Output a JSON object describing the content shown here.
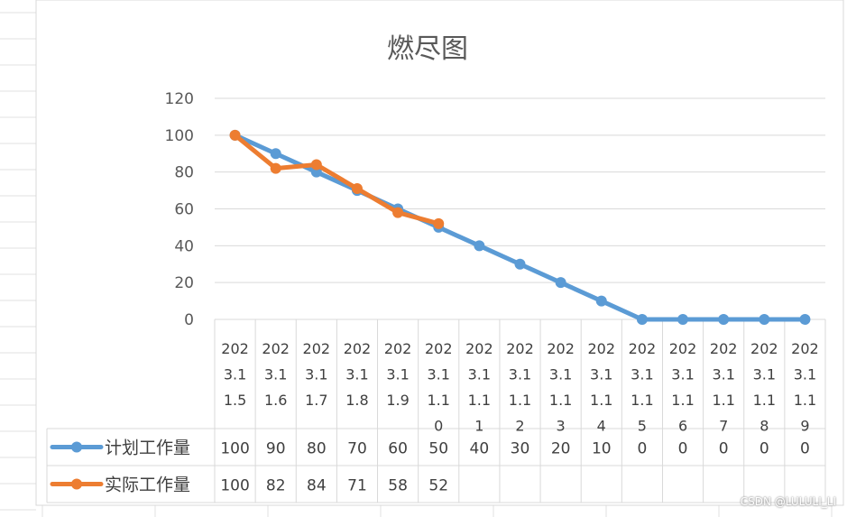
{
  "chart_data": {
    "type": "line",
    "title": "燃尽图",
    "ylim": [
      0,
      120
    ],
    "yticks": [
      "0",
      "20",
      "40",
      "60",
      "80",
      "100",
      "120"
    ],
    "grid": true,
    "legend_placement": "data-table",
    "categories": [
      [
        "202",
        "3.1",
        "1.5"
      ],
      [
        "202",
        "3.1",
        "1.6"
      ],
      [
        "202",
        "3.1",
        "1.7"
      ],
      [
        "202",
        "3.1",
        "1.8"
      ],
      [
        "202",
        "3.1",
        "1.9"
      ],
      [
        "202",
        "3.1",
        "1.1",
        "0"
      ],
      [
        "202",
        "3.1",
        "1.1",
        "1"
      ],
      [
        "202",
        "3.1",
        "1.1",
        "2"
      ],
      [
        "202",
        "3.1",
        "1.1",
        "3"
      ],
      [
        "202",
        "3.1",
        "1.1",
        "4"
      ],
      [
        "202",
        "3.1",
        "1.1",
        "5"
      ],
      [
        "202",
        "3.1",
        "1.1",
        "6"
      ],
      [
        "202",
        "3.1",
        "1.1",
        "7"
      ],
      [
        "202",
        "3.1",
        "1.1",
        "8"
      ],
      [
        "202",
        "3.1",
        "1.1",
        "9"
      ]
    ],
    "series": [
      {
        "name": "计划工作量",
        "color": "#5b9bd5",
        "values": [
          100,
          90,
          80,
          70,
          60,
          50,
          40,
          30,
          20,
          10,
          0,
          0,
          0,
          0,
          0
        ]
      },
      {
        "name": "实际工作量",
        "color": "#ed7d31",
        "values": [
          100,
          82,
          84,
          71,
          58,
          52,
          null,
          null,
          null,
          null,
          null,
          null,
          null,
          null,
          null
        ]
      }
    ]
  },
  "watermark": "CSDN @LULULI_LI"
}
